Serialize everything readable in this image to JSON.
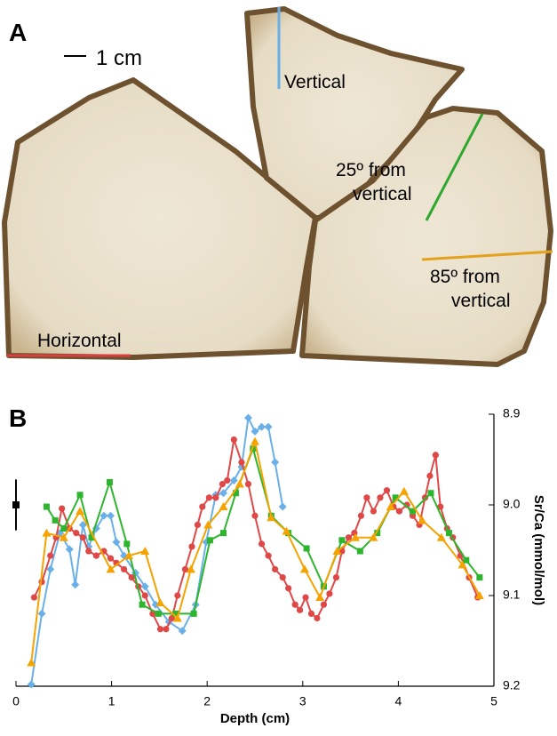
{
  "panel_a": {
    "label": "A",
    "scale_bar": "1 cm",
    "annotations": [
      {
        "lines": [
          "Vertical"
        ],
        "color": "#6aaee6"
      },
      {
        "lines": [
          "25º from",
          "vertical"
        ],
        "color": "#2ea82e"
      },
      {
        "lines": [
          "85º from",
          "vertical"
        ],
        "color": "#e3a11c"
      },
      {
        "lines": [
          "Horizontal"
        ],
        "color": "#d94040"
      }
    ]
  },
  "chart_data": {
    "type": "line",
    "label": "B",
    "xlabel": "Depth (cm)",
    "ylabel": "Sr/Ca (mmol/mol)",
    "xlim": [
      0,
      5
    ],
    "xticks": [
      0,
      1,
      2,
      3,
      4,
      5
    ],
    "ylim": [
      8.9,
      9.2
    ],
    "y_inverted": true,
    "y_axis_side": "right",
    "yticks": [
      8.9,
      {
        "value": 9,
        "label": "9.0"
      },
      9.1,
      9.2
    ],
    "error_bar": {
      "x": 0,
      "value": 9.0,
      "error": 0.028
    },
    "series": [
      {
        "color": "#6ab0e8",
        "marker": "diamond",
        "x": [
          0.16,
          0.27,
          0.36,
          0.46,
          0.56,
          0.62,
          0.7,
          0.76,
          0.84,
          0.92,
          0.99,
          1.05,
          1.13,
          1.25,
          1.35,
          1.46,
          1.6,
          1.74,
          1.88,
          1.99,
          2.09,
          2.17,
          2.28,
          2.36,
          2.43,
          2.5,
          2.57,
          2.64,
          2.71,
          2.79
        ],
        "values": [
          9.198,
          9.12,
          9.071,
          9.031,
          9.049,
          9.088,
          9.022,
          9.046,
          9.026,
          9.012,
          9.012,
          9.041,
          9.056,
          9.075,
          9.09,
          9.11,
          9.129,
          9.139,
          9.11,
          9.041,
          8.989,
          8.987,
          8.973,
          8.958,
          8.904,
          8.919,
          8.914,
          8.914,
          8.953,
          9.002
        ]
      },
      {
        "color": "#e04848",
        "marker": "circle",
        "x": [
          0.19,
          0.27,
          0.36,
          0.42,
          0.48,
          0.56,
          0.63,
          0.7,
          0.76,
          0.84,
          0.92,
          0.99,
          1.05,
          1.13,
          1.21,
          1.28,
          1.35,
          1.43,
          1.51,
          1.57,
          1.63,
          1.69,
          1.77,
          1.84,
          1.9,
          1.95,
          2.02,
          2.09,
          2.16,
          2.21,
          2.28,
          2.36,
          2.43,
          2.5,
          2.57,
          2.64,
          2.71,
          2.79,
          2.85,
          2.92,
          2.97,
          3.03,
          3.09,
          3.15,
          3.22,
          3.28,
          3.35,
          3.41,
          3.48,
          3.54,
          3.61,
          3.67,
          3.74,
          3.81,
          3.88,
          3.95,
          4.01,
          4.09,
          4.15,
          4.22,
          4.28,
          4.33,
          4.39,
          4.44,
          4.51,
          4.57,
          4.65,
          4.74,
          4.83
        ],
        "values": [
          9.102,
          9.085,
          9.056,
          9.036,
          9.004,
          9.026,
          9.031,
          9.036,
          9.051,
          9.056,
          9.051,
          9.059,
          9.064,
          9.071,
          9.08,
          9.09,
          9.1,
          9.12,
          9.137,
          9.137,
          9.125,
          9.1,
          9.071,
          9.046,
          9.022,
          9.002,
          8.992,
          8.992,
          8.977,
          8.973,
          8.928,
          8.953,
          8.977,
          9.012,
          9.043,
          9.056,
          9.071,
          9.08,
          9.092,
          9.11,
          9.116,
          9.102,
          9.12,
          9.125,
          9.11,
          9.098,
          9.08,
          9.051,
          9.036,
          9.031,
          9.012,
          8.992,
          9.007,
          8.992,
          8.984,
          9.002,
          9.007,
          9.0,
          9.012,
          9.022,
          8.992,
          8.968,
          8.945,
          9.002,
          9.026,
          9.036,
          9.056,
          9.08,
          9.102
        ]
      },
      {
        "color": "#2db52d",
        "marker": "square",
        "x": [
          0.32,
          0.41,
          0.5,
          0.67,
          0.79,
          0.98,
          1.16,
          1.32,
          1.49,
          1.67,
          1.86,
          2.03,
          2.17,
          2.3,
          2.48,
          2.67,
          2.85,
          3.04,
          3.22,
          3.41,
          3.6,
          3.78,
          3.97,
          4.15,
          4.34,
          4.53,
          4.71,
          4.85
        ],
        "values": [
          9.002,
          9.017,
          9.026,
          8.989,
          9.036,
          8.975,
          9.043,
          9.11,
          9.12,
          9.12,
          9.12,
          9.039,
          9.031,
          8.987,
          8.938,
          9.012,
          9.031,
          9.048,
          9.09,
          9.039,
          9.051,
          9.031,
          8.992,
          9.007,
          8.987,
          9.031,
          9.061,
          9.08
        ]
      },
      {
        "color": "#f5a300",
        "marker": "triangle",
        "x": [
          0.16,
          0.32,
          0.5,
          0.67,
          0.99,
          1.18,
          1.35,
          1.51,
          1.69,
          1.83,
          2.01,
          2.17,
          2.34,
          2.5,
          2.67,
          2.83,
          3.02,
          3.18,
          3.36,
          3.55,
          3.74,
          3.92,
          4.06,
          4.25,
          4.45,
          4.67,
          4.85
        ],
        "values": [
          9.174,
          9.031,
          9.036,
          9.007,
          9.071,
          9.056,
          9.051,
          9.108,
          9.125,
          9.071,
          9.022,
          9.002,
          8.977,
          8.93,
          9.014,
          9.029,
          9.071,
          9.102,
          9.051,
          9.036,
          9.036,
          9.002,
          8.985,
          9.017,
          9.036,
          9.066,
          9.1
        ]
      }
    ]
  }
}
